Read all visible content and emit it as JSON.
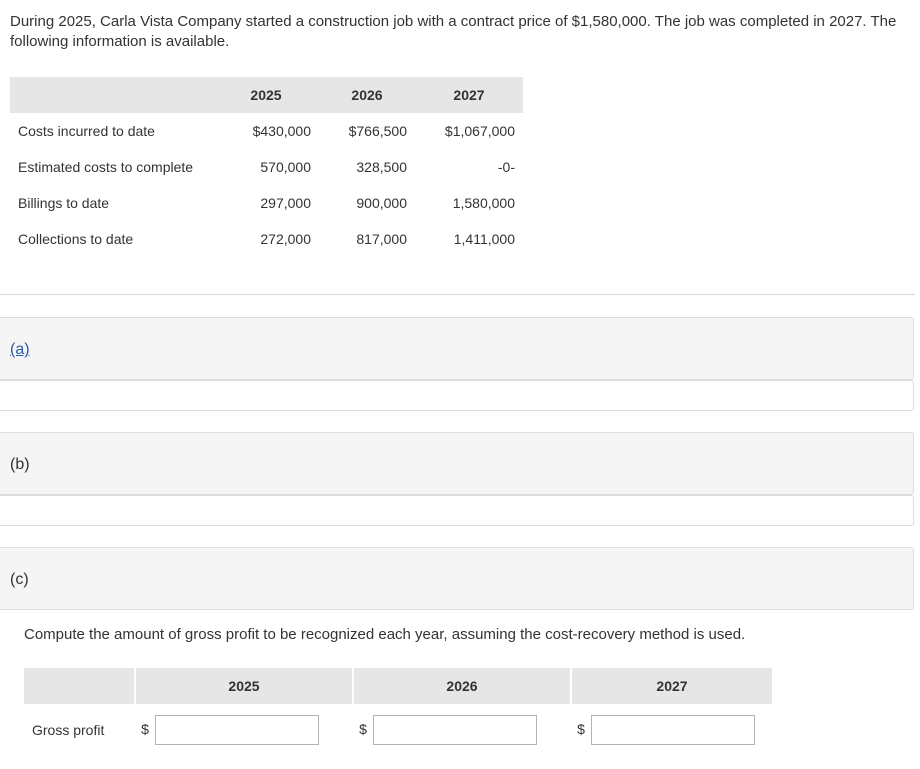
{
  "intro": "During 2025, Carla Vista Company started a construction job with a contract price of $1,580,000. The job was completed in 2027. The following information is available.",
  "info_table": {
    "headers": [
      "",
      "2025",
      "2026",
      "2027"
    ],
    "rows": [
      {
        "label": "Costs incurred to date",
        "values": [
          "$430,000",
          "$766,500",
          "$1,067,000"
        ]
      },
      {
        "label": "Estimated costs to complete",
        "values": [
          "570,000",
          "328,500",
          "-0-"
        ]
      },
      {
        "label": "Billings to date",
        "values": [
          "297,000",
          "900,000",
          "1,580,000"
        ]
      },
      {
        "label": "Collections to date",
        "values": [
          "272,000",
          "817,000",
          "1,411,000"
        ]
      }
    ]
  },
  "parts": {
    "a": "(a)",
    "b": "(b)",
    "c": "(c)"
  },
  "question": "Compute the amount of gross profit to be recognized each year, assuming the cost-recovery method is used.",
  "answer_table": {
    "headers": [
      "2025",
      "2026",
      "2027"
    ],
    "row_label": "Gross profit",
    "currency": "$",
    "inputs": [
      "",
      "",
      ""
    ]
  }
}
